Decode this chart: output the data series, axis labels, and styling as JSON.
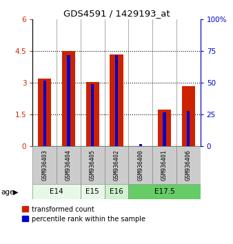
{
  "title": "GDS4591 / 1429193_at",
  "samples": [
    "GSM936403",
    "GSM936404",
    "GSM936405",
    "GSM936402",
    "GSM936400",
    "GSM936401",
    "GSM936406"
  ],
  "red_values": [
    3.2,
    4.5,
    3.05,
    4.35,
    0.0,
    1.75,
    2.85
  ],
  "blue_pct": [
    52,
    72,
    49,
    72,
    2,
    27,
    28
  ],
  "age_groups": [
    {
      "label": "E14",
      "start": 0,
      "end": 2,
      "color": "#e8f8e8"
    },
    {
      "label": "E15",
      "start": 2,
      "end": 3,
      "color": "#e8f8e8"
    },
    {
      "label": "E16",
      "start": 3,
      "end": 4,
      "color": "#d0f0d0"
    },
    {
      "label": "E17.5",
      "start": 4,
      "end": 7,
      "color": "#66cc66"
    }
  ],
  "ylim_left": [
    0,
    6
  ],
  "ylim_right": [
    0,
    100
  ],
  "yticks_left": [
    0,
    1.5,
    3.0,
    4.5,
    6.0
  ],
  "ytick_labels_left": [
    "0",
    "1.5",
    "3",
    "4.5",
    "6"
  ],
  "yticks_right": [
    0,
    25,
    50,
    75,
    100
  ],
  "ytick_labels_right": [
    "0",
    "25",
    "50",
    "75",
    "100%"
  ],
  "red_color": "#cc2200",
  "blue_color": "#0000cc",
  "bg_color": "#ffffff",
  "legend_red": "transformed count",
  "legend_blue": "percentile rank within the sample",
  "age_label": "age",
  "left_axis_color": "#cc2200",
  "right_axis_color": "#0000cc"
}
